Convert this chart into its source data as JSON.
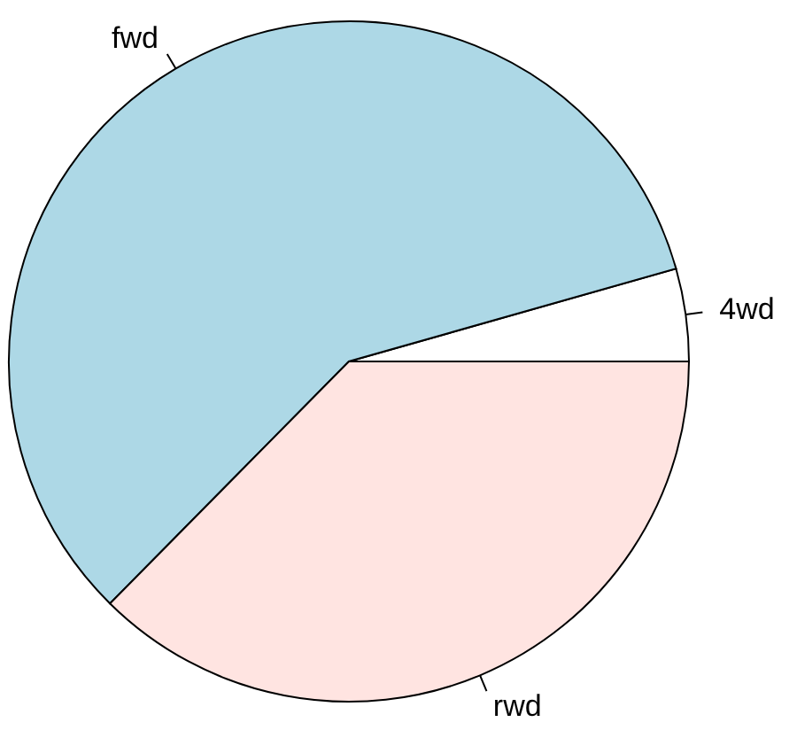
{
  "chart_data": {
    "type": "pie",
    "categories": [
      "4wd",
      "fwd",
      "rwd"
    ],
    "values": [
      4.4,
      58.2,
      37.4
    ],
    "colors": [
      "#ffffff",
      "#add8e6",
      "#ffe4e1"
    ]
  }
}
